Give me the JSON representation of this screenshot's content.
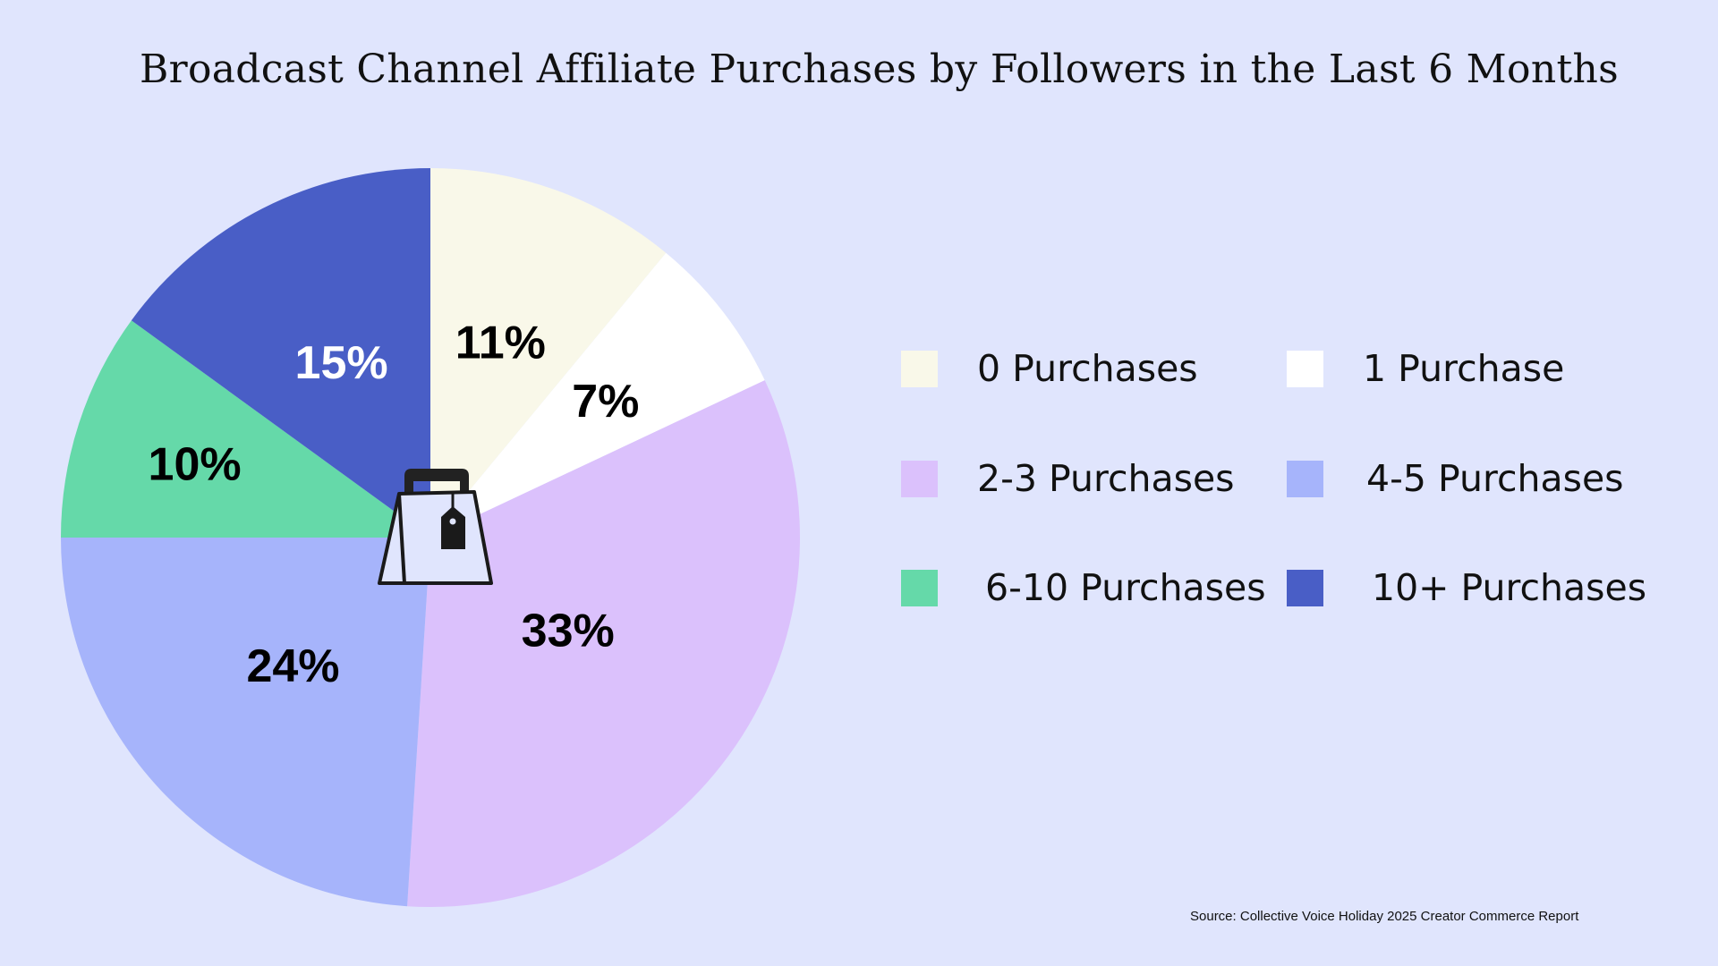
{
  "chart_data": {
    "type": "pie",
    "title": "Broadcast Channel Affiliate Purchases by Followers in the Last 6 Months",
    "categories": [
      "0 Purchases",
      "1 Purchase",
      "2-3 Purchases",
      "4-5 Purchases",
      "6-10 Purchases",
      "10+ Purchases"
    ],
    "values": [
      11,
      7,
      33,
      24,
      10,
      15
    ],
    "value_labels": [
      "11%",
      "7%",
      "33%",
      "24%",
      "10%",
      "15%"
    ],
    "colors": [
      "#F9F8E9",
      "#FFFFFF",
      "#DBC1FC",
      "#A6B4FB",
      "#65D9A9",
      "#495EC6"
    ],
    "label_colors": [
      "#000000",
      "#000000",
      "#000000",
      "#000000",
      "#000000",
      "#FFFFFF"
    ],
    "start_angle": "12 o'clock",
    "direction": "clockwise",
    "center_icon": "shopping-bag-with-tag-icon",
    "legend_placement": "right",
    "legend_columns": 2
  },
  "source": "Source: Collective Voice Holiday 2025 Creator Commerce Report"
}
